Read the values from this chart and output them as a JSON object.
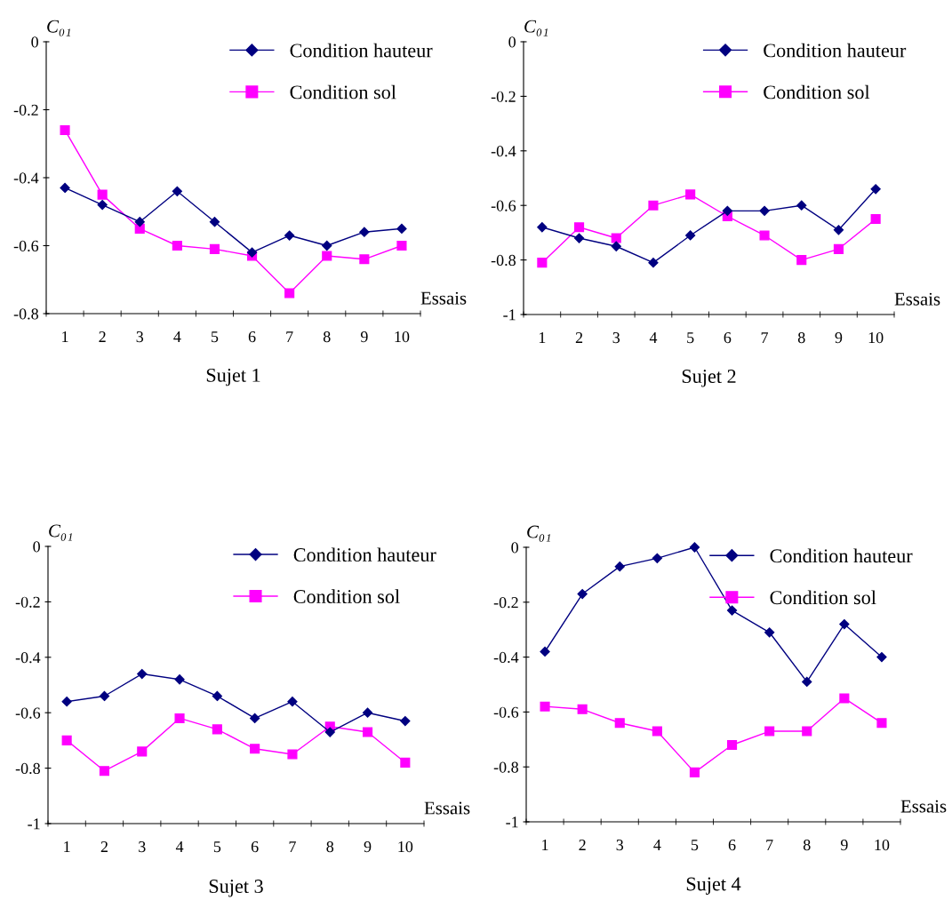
{
  "chart_data": [
    {
      "type": "line",
      "title": "Sujet 1",
      "xlabel": "Essais",
      "ylabel": "C₀₁",
      "categories": [
        "1",
        "2",
        "3",
        "4",
        "5",
        "6",
        "7",
        "8",
        "9",
        "10"
      ],
      "ylim": [
        -0.8,
        0
      ],
      "yticks": [
        -0.8,
        -0.6,
        -0.4,
        -0.2,
        0
      ],
      "legend": "top right",
      "grid": false,
      "series": [
        {
          "name": "Condition hauteur",
          "color": "#000080",
          "marker": "diamond",
          "values": [
            -0.43,
            -0.48,
            -0.53,
            -0.44,
            -0.53,
            -0.62,
            -0.57,
            -0.6,
            -0.56,
            -0.55
          ]
        },
        {
          "name": "Condition sol",
          "color": "#ff00ff",
          "marker": "square",
          "values": [
            -0.26,
            -0.45,
            -0.55,
            -0.6,
            -0.61,
            -0.63,
            -0.74,
            -0.63,
            -0.64,
            -0.6
          ]
        }
      ]
    },
    {
      "type": "line",
      "title": "Sujet 2",
      "xlabel": "Essais",
      "ylabel": "C₀₁",
      "categories": [
        "1",
        "2",
        "3",
        "4",
        "5",
        "6",
        "7",
        "8",
        "9",
        "10"
      ],
      "ylim": [
        -1,
        0
      ],
      "yticks": [
        -1,
        -0.8,
        -0.6,
        -0.4,
        -0.2,
        0
      ],
      "legend": "top right",
      "grid": false,
      "series": [
        {
          "name": "Condition hauteur",
          "color": "#000080",
          "marker": "diamond",
          "values": [
            -0.68,
            -0.72,
            -0.75,
            -0.81,
            -0.71,
            -0.62,
            -0.62,
            -0.6,
            -0.69,
            -0.54
          ]
        },
        {
          "name": "Condition sol",
          "color": "#ff00ff",
          "marker": "square",
          "values": [
            -0.81,
            -0.68,
            -0.72,
            -0.6,
            -0.56,
            -0.64,
            -0.71,
            -0.8,
            -0.76,
            -0.65
          ]
        }
      ]
    },
    {
      "type": "line",
      "title": "Sujet 3",
      "xlabel": "Essais",
      "ylabel": "C₀₁",
      "categories": [
        "1",
        "2",
        "3",
        "4",
        "5",
        "6",
        "7",
        "8",
        "9",
        "10"
      ],
      "ylim": [
        -1,
        0
      ],
      "yticks": [
        -1,
        -0.8,
        -0.6,
        -0.4,
        -0.2,
        0
      ],
      "legend": "top right",
      "grid": false,
      "series": [
        {
          "name": "Condition hauteur",
          "color": "#000080",
          "marker": "diamond",
          "values": [
            -0.56,
            -0.54,
            -0.46,
            -0.48,
            -0.54,
            -0.62,
            -0.56,
            -0.67,
            -0.6,
            -0.63
          ]
        },
        {
          "name": "Condition sol",
          "color": "#ff00ff",
          "marker": "square",
          "values": [
            -0.7,
            -0.81,
            -0.74,
            -0.62,
            -0.66,
            -0.73,
            -0.75,
            -0.65,
            -0.67,
            -0.78
          ]
        }
      ]
    },
    {
      "type": "line",
      "title": "Sujet 4",
      "xlabel": "Essais",
      "ylabel": "C₀₁",
      "categories": [
        "1",
        "2",
        "3",
        "4",
        "5",
        "6",
        "7",
        "8",
        "9",
        "10"
      ],
      "ylim": [
        -1,
        0
      ],
      "yticks": [
        -1,
        -0.8,
        -0.6,
        -0.4,
        -0.2,
        0
      ],
      "legend": "top right",
      "grid": false,
      "series": [
        {
          "name": "Condition hauteur",
          "color": "#000080",
          "marker": "diamond",
          "values": [
            -0.38,
            -0.17,
            -0.07,
            -0.04,
            0,
            -0.23,
            -0.31,
            -0.49,
            -0.28,
            -0.4
          ]
        },
        {
          "name": "Condition sol",
          "color": "#ff00ff",
          "marker": "square",
          "values": [
            -0.58,
            -0.59,
            -0.64,
            -0.67,
            -0.82,
            -0.72,
            -0.67,
            -0.67,
            -0.55,
            -0.64
          ]
        }
      ]
    }
  ]
}
